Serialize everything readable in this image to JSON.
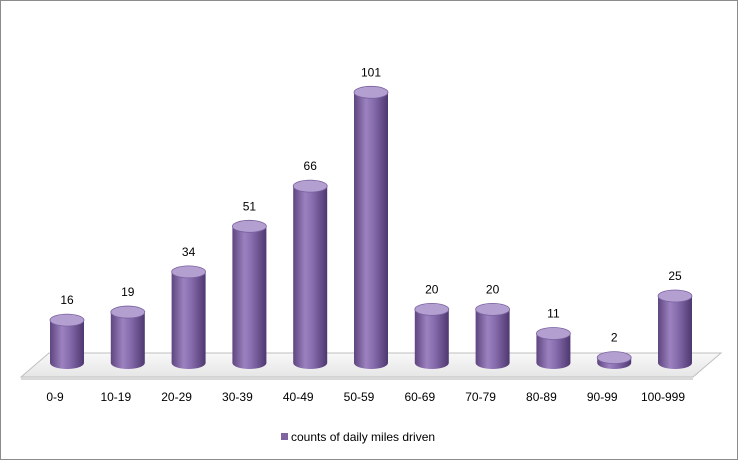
{
  "chart_data": {
    "type": "bar",
    "style": "3d-cylinder",
    "categories": [
      "0-9",
      "10-19",
      "20-29",
      "30-39",
      "40-49",
      "50-59",
      "60-69",
      "70-79",
      "80-89",
      "90-99",
      "100-999"
    ],
    "series": [
      {
        "name": "counts of daily miles driven",
        "values": [
          16,
          19,
          34,
          51,
          66,
          101,
          20,
          20,
          11,
          2,
          25
        ]
      }
    ],
    "title": "",
    "xlabel": "",
    "ylabel": "",
    "ylim": [
      0,
      110
    ],
    "grid": false,
    "legend": "bottom",
    "colors": {
      "bar": "#8064a2",
      "bar_dark": "#4b3566",
      "bar_light": "#b39fd0",
      "floor": "#f2f2f2",
      "floor_edge": "#bfbfbf"
    }
  }
}
